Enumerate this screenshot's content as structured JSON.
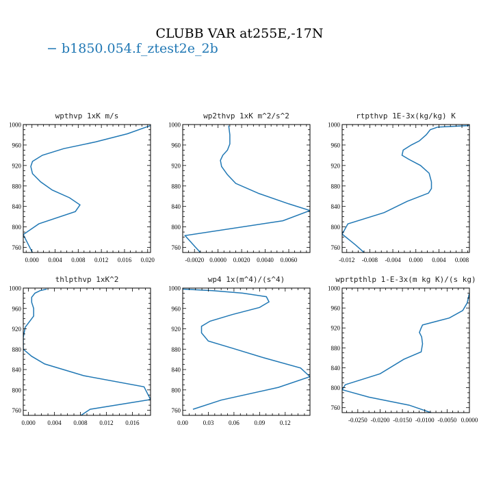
{
  "figure": {
    "title": "CLUBB VAR at255E,-17N",
    "legend_label": "b1850.054.f_ztest2e_2b",
    "legend_marker": "−",
    "line_color": "#1f77b4"
  },
  "chart_data": [
    {
      "type": "line",
      "title": "wpthvp  1xK m/s",
      "xlim": [
        -0.0015,
        0.0205
      ],
      "ylim": [
        1000,
        750
      ],
      "xticks": [
        0.0,
        0.004,
        0.008,
        0.012,
        0.016,
        0.02
      ],
      "xtick_labels": [
        "0.000",
        "0.004",
        "0.008",
        "0.012",
        "0.016",
        "0.020"
      ],
      "yticks": [
        760,
        800,
        840,
        880,
        920,
        960,
        1000
      ],
      "ytick_labels": [
        "760",
        "800",
        "840",
        "880",
        "920",
        "960",
        "1000"
      ],
      "series": [
        {
          "x": [
            0.0003,
            -0.0006,
            -0.0015,
            0.0012,
            0.0075,
            0.0083,
            0.0065,
            0.0035,
            0.0015,
            0.0001,
            -0.0002,
            0.0001,
            0.0018,
            0.0055,
            0.011,
            0.0165,
            0.0205
          ],
          "y": [
            745,
            765,
            785,
            806,
            830,
            843,
            857,
            872,
            888,
            904,
            918,
            928,
            940,
            953,
            966,
            982,
            998
          ]
        }
      ]
    },
    {
      "type": "line",
      "title": "wp2thvp  1xK m^2/s^2",
      "xlim": [
        -0.003,
        0.0078
      ],
      "ylim": [
        1000,
        750
      ],
      "xticks": [
        -0.002,
        0.0,
        0.002,
        0.004,
        0.006
      ],
      "xtick_labels": [
        "-0.0020",
        "0.0000",
        "0.0020",
        "0.0040",
        "0.0060"
      ],
      "yticks": [
        760,
        800,
        840,
        880,
        920,
        960,
        1000
      ],
      "ytick_labels": [
        "760",
        "800",
        "840",
        "880",
        "920",
        "960",
        "1000"
      ],
      "series": [
        {
          "x": [
            -0.0013,
            -0.0019,
            -0.0028,
            0.0055,
            0.0078,
            0.006,
            0.0035,
            0.0015,
            0.0008,
            0.0003,
            0.0002,
            0.0004,
            0.0008,
            0.001,
            0.001,
            0.0009
          ],
          "y": [
            745,
            760,
            783,
            812,
            832,
            845,
            865,
            885,
            902,
            918,
            930,
            940,
            950,
            962,
            980,
            998
          ]
        }
      ]
    },
    {
      "type": "line",
      "title": "rtpthvp  1E-3x(kg/kg) K",
      "xlim": [
        -0.0128,
        0.0093
      ],
      "ylim": [
        1000,
        750
      ],
      "xticks": [
        -0.012,
        -0.008,
        -0.004,
        0.0,
        0.004,
        0.008
      ],
      "xtick_labels": [
        "-0.012",
        "-0.008",
        "-0.004",
        "0.000",
        "0.004",
        "0.008"
      ],
      "yticks": [
        760,
        800,
        840,
        880,
        920,
        960,
        1000
      ],
      "ytick_labels": [
        "760",
        "800",
        "840",
        "880",
        "920",
        "960",
        "1000"
      ],
      "series": [
        {
          "x": [
            -0.0085,
            -0.0105,
            -0.0128,
            -0.0118,
            -0.0055,
            -0.0015,
            0.0022,
            0.0027,
            0.0027,
            0.0023,
            0.0008,
            -0.0012,
            -0.0024,
            -0.0022,
            -0.0008,
            0.0006,
            0.0018,
            0.0025,
            0.0038,
            0.0093
          ],
          "y": [
            745,
            765,
            786,
            806,
            828,
            850,
            866,
            875,
            888,
            905,
            920,
            932,
            940,
            950,
            960,
            968,
            980,
            990,
            995,
            998
          ]
        }
      ]
    },
    {
      "type": "line",
      "title": "thlpthvp  1xK^2",
      "xlim": [
        -0.0008,
        0.0188
      ],
      "ylim": [
        1000,
        750
      ],
      "xticks": [
        0.0,
        0.004,
        0.008,
        0.012,
        0.016
      ],
      "xtick_labels": [
        "0.000",
        "0.004",
        "0.008",
        "0.012",
        "0.016"
      ],
      "yticks": [
        760,
        800,
        840,
        880,
        920,
        960,
        1000
      ],
      "ytick_labels": [
        "760",
        "800",
        "840",
        "880",
        "920",
        "960",
        "1000"
      ],
      "series": [
        {
          "x": [
            0.0075,
            0.0095,
            0.0188,
            0.0178,
            0.0085,
            0.0025,
            0.0005,
            -0.0008,
            -0.0008,
            -0.0005,
            0.0002,
            0.0008,
            0.0008,
            0.0005,
            0.0005,
            0.001,
            0.0018,
            0.0028
          ],
          "y": [
            745,
            762,
            781,
            806,
            828,
            851,
            866,
            880,
            903,
            923,
            935,
            945,
            960,
            972,
            982,
            990,
            995,
            998
          ]
        }
      ]
    },
    {
      "type": "line",
      "title": "wp4  1x(m^4)/(s^4)",
      "xlim": [
        0.0,
        0.149
      ],
      "ylim": [
        1000,
        750
      ],
      "xticks": [
        0.0,
        0.03,
        0.06,
        0.09,
        0.12
      ],
      "xtick_labels": [
        "0.00",
        "0.03",
        "0.06",
        "0.09",
        "0.12"
      ],
      "yticks": [
        760,
        800,
        840,
        880,
        920,
        960,
        1000
      ],
      "ytick_labels": [
        "760",
        "800",
        "840",
        "880",
        "920",
        "960",
        "1000"
      ],
      "series": [
        {
          "x": [
            0.012,
            0.045,
            0.112,
            0.149,
            0.138,
            0.095,
            0.058,
            0.03,
            0.022,
            0.022,
            0.032,
            0.058,
            0.09,
            0.101,
            0.098,
            0.07,
            0.035,
            0.0
          ],
          "y": [
            762,
            780,
            805,
            826,
            843,
            863,
            882,
            896,
            912,
            925,
            935,
            948,
            962,
            973,
            983,
            990,
            995,
            998
          ]
        }
      ]
    },
    {
      "type": "line",
      "title": "wprtpthlp  1-E-3x(m kg K)/(s kg)",
      "xlim": [
        -0.0285,
        0.0
      ],
      "ylim": [
        1000,
        750
      ],
      "xticks": [
        -0.025,
        -0.02,
        -0.015,
        -0.01,
        -0.005,
        0.0
      ],
      "xtick_labels": [
        "-0.0250",
        "-0.0200",
        "-0.0150",
        "-0.0100",
        "-0.0050",
        "0.0000"
      ],
      "yticks": [
        760,
        800,
        840,
        880,
        920,
        960,
        1000
      ],
      "ytick_labels": [
        "760",
        "800",
        "840",
        "880",
        "920",
        "960",
        "1000"
      ],
      "series": [
        {
          "x": [
            -0.007,
            -0.0135,
            -0.0225,
            -0.0285,
            -0.0278,
            -0.02,
            -0.0147,
            -0.0108,
            -0.0105,
            -0.0107,
            -0.0112,
            -0.0108,
            -0.0105,
            -0.0045,
            -0.0015,
            -0.0005,
            0.0
          ],
          "y": [
            745,
            765,
            781,
            796,
            806,
            828,
            857,
            872,
            888,
            902,
            911,
            920,
            926,
            940,
            955,
            970,
            990
          ]
        }
      ]
    }
  ]
}
